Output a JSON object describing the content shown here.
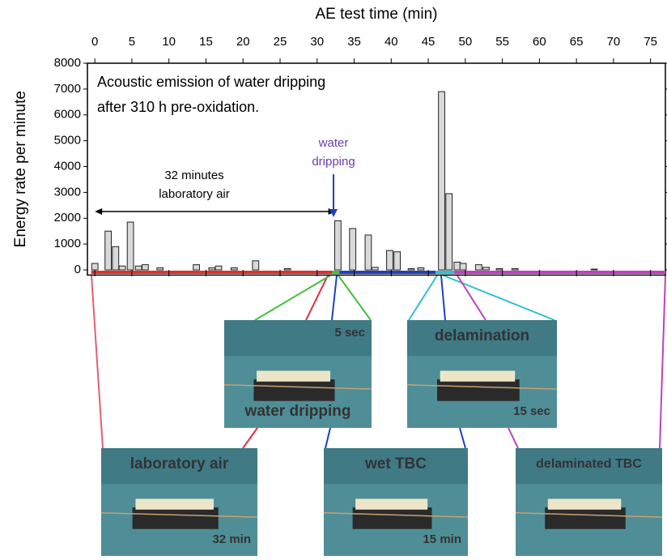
{
  "chart_data": {
    "type": "bar",
    "x_label": "AE test time (min)",
    "y_label": "Energy rate per minute",
    "annotations": [
      "Acoustic emission of water dripping",
      "after 310 h pre-oxidation.",
      "water",
      "dripping",
      "32 minutes",
      "laboratory air"
    ],
    "x": [
      0,
      1.8,
      2.8,
      3.7,
      4.8,
      5.9,
      6.8,
      8.8,
      13.7,
      15.8,
      16.7,
      18.8,
      21.7,
      26,
      32.8,
      34.8,
      36.9,
      37.8,
      39.8,
      40.8,
      42.7,
      44,
      46.8,
      47.8,
      48.9,
      49.7,
      51.8,
      52.8,
      54.6,
      56.7,
      67.4
    ],
    "values": [
      250,
      1500,
      900,
      150,
      1850,
      150,
      200,
      80,
      200,
      80,
      150,
      80,
      350,
      50,
      1900,
      1600,
      1350,
      100,
      750,
      700,
      50,
      80,
      6900,
      2950,
      300,
      250,
      200,
      100,
      50,
      50,
      30
    ],
    "color": "#d9d9d9",
    "xlim": [
      -1,
      77
    ],
    "xticks": [
      0,
      5,
      10,
      15,
      20,
      25,
      30,
      35,
      40,
      45,
      50,
      55,
      60,
      65,
      70,
      75
    ],
    "ylim": [
      -200,
      8000
    ],
    "yticks": [
      0,
      1000,
      2000,
      3000,
      4000,
      5000,
      6000,
      7000,
      8000
    ]
  },
  "photos": [
    {
      "label": "water dripping",
      "time": "5 sec"
    },
    {
      "label": "delamination",
      "time": "15 sec"
    },
    {
      "label": "laboratory air",
      "time": "32 min"
    },
    {
      "label": "wet TBC",
      "time": "15 min"
    },
    {
      "label": "delaminated TBC"
    }
  ]
}
